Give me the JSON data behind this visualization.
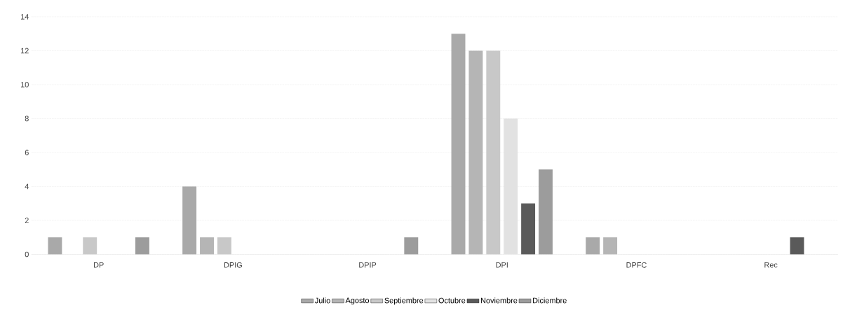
{
  "chart_data": {
    "type": "bar",
    "categories": [
      "DP",
      "DPIG",
      "DPIP",
      "DPI",
      "DPFC",
      "Rec"
    ],
    "series": [
      {
        "name": "Julio",
        "color": "#a9a9a9",
        "values": [
          1,
          4,
          0,
          13,
          1,
          0
        ]
      },
      {
        "name": "Agosto",
        "color": "#b5b5b5",
        "values": [
          0,
          1,
          0,
          12,
          1,
          0
        ]
      },
      {
        "name": "Septiembre",
        "color": "#c8c8c8",
        "values": [
          1,
          1,
          0,
          12,
          0,
          0
        ]
      },
      {
        "name": "Octubre",
        "color": "#e2e2e2",
        "values": [
          0,
          0,
          0,
          8,
          0,
          0
        ]
      },
      {
        "name": "Noviembre",
        "color": "#5a5a5a",
        "values": [
          0,
          0,
          0,
          3,
          0,
          1
        ]
      },
      {
        "name": "Diciembre",
        "color": "#9c9c9c",
        "values": [
          1,
          0,
          1,
          5,
          0,
          0
        ]
      }
    ],
    "ylim": [
      0,
      14
    ],
    "yticks": [
      0,
      2,
      4,
      6,
      8,
      10,
      12,
      14
    ],
    "grid": "y",
    "legend": "bottom"
  }
}
